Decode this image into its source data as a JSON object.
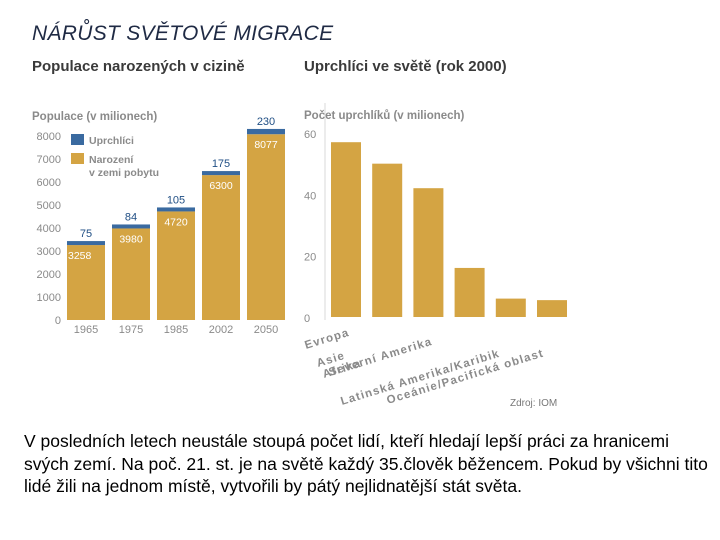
{
  "slide": {
    "title": "NÁRŮST SVĚTOVÉ MIGRACE",
    "source": "Zdroj: IOM",
    "body": "V posledních letech neustále stoupá počet lidí, kteří hledají lepší práci za hranicemi svých zemí. Na poč. 21. st. je na světě každý 35.člověk běžencem. Pokud by všichni tito lidé žili na jednom místě, vytvořili by pátý nejlidnatější stát světa."
  },
  "colors": {
    "gold": "#d4a443",
    "blue": "#3a6aa0",
    "axis_text": "#8a8a8a",
    "label_blue": "#1f4e84",
    "label_white": "#ffffff",
    "label_black": "#222222"
  },
  "chart_data": [
    {
      "type": "bar",
      "title": "Populace narozených v cizině",
      "ylabel": "Populace (v milionech)",
      "categories": [
        "1965",
        "1975",
        "1985",
        "2002",
        "2050"
      ],
      "ylim": [
        0,
        8000
      ],
      "yticks": [
        "0",
        "1000",
        "2000",
        "3000",
        "4000",
        "5000",
        "6000",
        "7000",
        "8000"
      ],
      "stacked": true,
      "series": [
        {
          "name": "Narození v zemi pobytu",
          "values": [
            3258,
            3980,
            4720,
            6300,
            8077
          ],
          "labels": [
            "3258",
            "3980",
            "4720",
            "6300",
            "8077"
          ]
        },
        {
          "name": "Uprchlíci",
          "values": [
            75,
            84,
            105,
            175,
            230
          ],
          "labels": [
            "75",
            "84",
            "105",
            "175",
            "230"
          ]
        }
      ],
      "legend": [
        "Uprchlíci",
        "Narození\nv zemi pobytu"
      ],
      "legend_position": "top-left",
      "grid": false
    },
    {
      "type": "bar",
      "title": "Uprchlíci ve světě (rok 2000)",
      "ylabel": "Počet uprchlíků (v milionech)",
      "categories": [
        "Evropa",
        "Asie",
        "Afrika",
        "Severní Amerika",
        "Latinská Amerika/Karibik",
        "Oceánie/Pacifická oblast"
      ],
      "ylim": [
        0,
        60
      ],
      "yticks": [
        "0",
        "20",
        "40",
        "60"
      ],
      "values": [
        57,
        50,
        42,
        16,
        6,
        5.5
      ],
      "grid": false
    }
  ]
}
